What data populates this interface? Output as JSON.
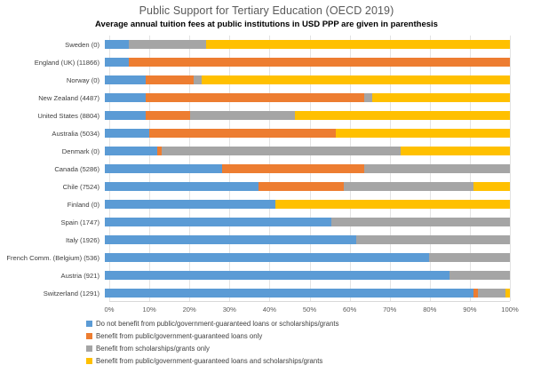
{
  "chart": {
    "title": "Public Support for Tertiary Education (OECD 2019)",
    "subtitle": "Average annual tuition fees at public institutions in USD PPP are given in parenthesis"
  },
  "chart_data": {
    "type": "bar",
    "orientation": "horizontal",
    "stacked": true,
    "title": "Public Support for Tertiary Education (OECD 2019)",
    "subtitle": "Average annual tuition fees at public institutions in USD PPP are given in parenthesis",
    "categories": [
      "Sweden (0)",
      "England (UK) (11866)",
      "Norway (0)",
      "New Zealand (4487)",
      "United States (8804)",
      "Australia (5034)",
      "Denmark (0)",
      "Canada (5286)",
      "Chile (7524)",
      "Finland (0)",
      "Spain (1747)",
      "Italy (1926)",
      "French Comm. (Belgium) (536)",
      "Austria (921)",
      "Switzerland (1291)"
    ],
    "series": [
      {
        "name": "Do not benefit from public/government-guaranteed loans or scholarships/grants",
        "color": "#5B9BD5",
        "values": [
          6,
          6,
          10,
          10,
          10,
          11,
          13,
          29,
          38,
          42,
          56,
          62,
          80,
          85,
          91
        ]
      },
      {
        "name": "Benefit from public/government-guaranteed loans only",
        "color": "#ED7D31",
        "values": [
          0,
          94,
          12,
          54,
          11,
          46,
          1,
          35,
          21,
          0,
          0,
          0,
          0,
          0,
          1
        ]
      },
      {
        "name": "Benefit from scholarships/grants only",
        "color": "#A5A5A5",
        "values": [
          19,
          0,
          2,
          2,
          26,
          0,
          59,
          36,
          32,
          0,
          44,
          38,
          20,
          15,
          7
        ]
      },
      {
        "name": "Benefit from public/government-guaranteed loans and scholarships/grants",
        "color": "#FFC000",
        "values": [
          75,
          0,
          76,
          34,
          53,
          43,
          27,
          0,
          9,
          58,
          0,
          0,
          0,
          0,
          1
        ]
      }
    ],
    "x_ticks": [
      "0%",
      "10%",
      "20%",
      "30%",
      "40%",
      "50%",
      "60%",
      "70%",
      "80%",
      "90%",
      "100%"
    ],
    "xlim": [
      0,
      100
    ],
    "grid": true,
    "legend_position": "bottom-left"
  }
}
